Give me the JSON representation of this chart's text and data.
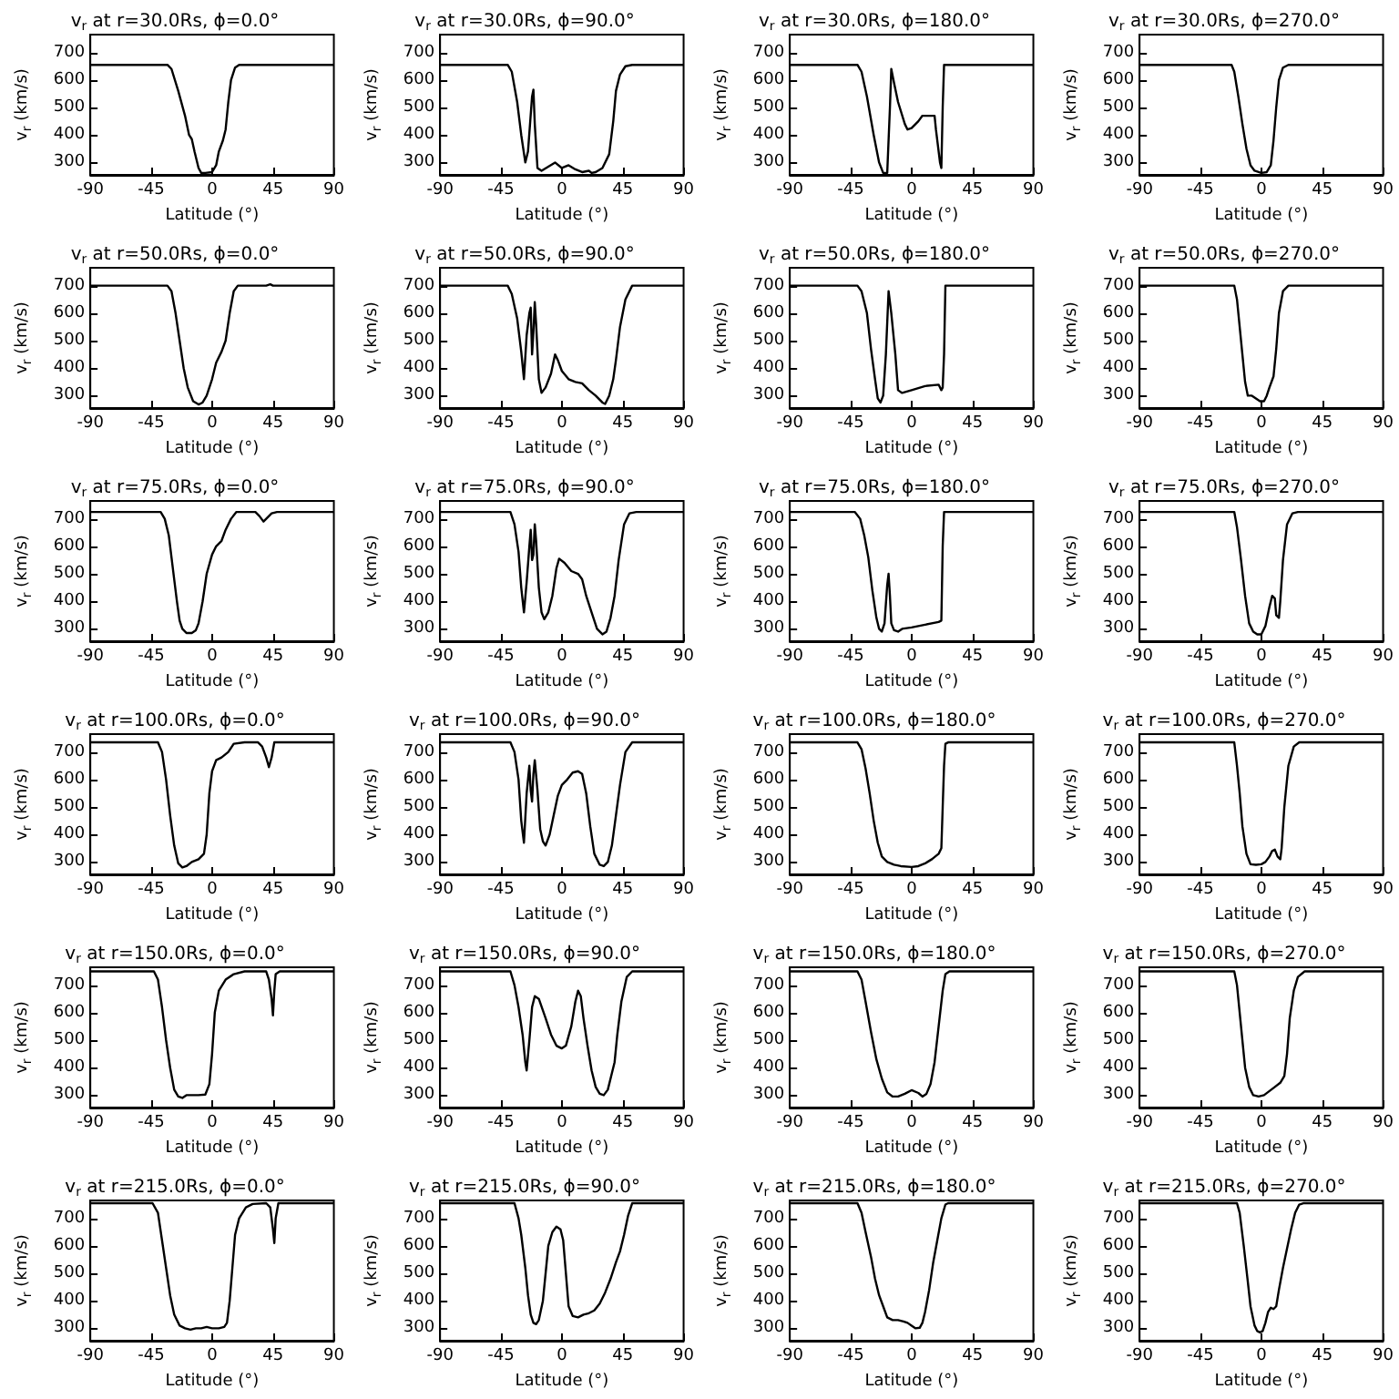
{
  "chart_data": [
    {
      "type": "line",
      "title": "v$_{r}$ at r=30.0Rs, ϕ=0.0°",
      "xlabel": "Latitude (°)",
      "ylabel": "v$_{r}$ (km/s)",
      "xlim": [
        -90,
        90
      ],
      "xticks": [
        -90,
        -45,
        0,
        45,
        90
      ],
      "ylim": [
        255,
        765
      ],
      "yticks": [
        300,
        400,
        500,
        600,
        700
      ],
      "color": "#000000",
      "x": [
        -90,
        -33,
        -30,
        -25,
        -20,
        -17,
        -15,
        -13,
        -10,
        -8,
        -5,
        0,
        3,
        5,
        8,
        10,
        12,
        14,
        17,
        20,
        90
      ],
      "values": [
        655,
        655,
        640,
        560,
        470,
        400,
        385,
        340,
        280,
        262,
        262,
        265,
        290,
        340,
        380,
        420,
        520,
        600,
        645,
        655,
        655
      ]
    },
    {
      "type": "line",
      "title": "v$_{r}$ at r=30.0Rs, ϕ=90.0°",
      "xlabel": "Latitude (°)",
      "ylabel": "v$_{r}$ (km/s)",
      "xlim": [
        -90,
        90
      ],
      "xticks": [
        -90,
        -45,
        0,
        45,
        90
      ],
      "ylim": [
        255,
        765
      ],
      "yticks": [
        300,
        400,
        500,
        600,
        700
      ],
      "color": "#000000",
      "x": [
        -90,
        -40,
        -37,
        -33,
        -30,
        -27,
        -25,
        -22,
        -21,
        -20,
        -18,
        -15,
        -10,
        -5,
        0,
        5,
        10,
        15,
        20,
        22,
        25,
        30,
        35,
        38,
        40,
        43,
        47,
        52,
        90
      ],
      "values": [
        655,
        655,
        630,
        520,
        400,
        300,
        340,
        540,
        565,
        440,
        280,
        270,
        285,
        300,
        280,
        290,
        275,
        265,
        270,
        262,
        265,
        280,
        330,
        450,
        560,
        620,
        650,
        655,
        655
      ]
    },
    {
      "type": "line",
      "title": "v$_{r}$ at r=30.0Rs, ϕ=180.0°",
      "xlabel": "Latitude (°)",
      "ylabel": "v$_{r}$ (km/s)",
      "xlim": [
        -90,
        90
      ],
      "xticks": [
        -90,
        -45,
        0,
        45,
        90
      ],
      "ylim": [
        255,
        765
      ],
      "yticks": [
        300,
        400,
        500,
        600,
        700
      ],
      "color": "#000000",
      "x": [
        -90,
        -40,
        -37,
        -33,
        -28,
        -24,
        -21,
        -18,
        -16,
        -15,
        -13,
        -10,
        -5,
        -3,
        0,
        5,
        8,
        14,
        17,
        18,
        21,
        22,
        23,
        24,
        90
      ],
      "values": [
        655,
        655,
        630,
        540,
        400,
        300,
        262,
        262,
        500,
        640,
        590,
        520,
        440,
        420,
        425,
        450,
        470,
        470,
        470,
        420,
        300,
        280,
        500,
        655,
        655
      ]
    },
    {
      "type": "line",
      "title": "v$_{r}$ at r=30.0Rs, ϕ=270.0°",
      "xlabel": "Latitude (°)",
      "ylabel": "v$_{r}$ (km/s)",
      "xlim": [
        -90,
        90
      ],
      "xticks": [
        -90,
        -45,
        0,
        45,
        90
      ],
      "ylim": [
        255,
        765
      ],
      "yticks": [
        300,
        400,
        500,
        600,
        700
      ],
      "color": "#000000",
      "x": [
        -90,
        -22,
        -20,
        -17,
        -14,
        -11,
        -8,
        -5,
        0,
        4,
        7,
        9,
        11,
        13,
        16,
        20,
        90
      ],
      "values": [
        655,
        655,
        630,
        540,
        440,
        350,
        290,
        270,
        262,
        265,
        290,
        380,
        500,
        600,
        645,
        655,
        655
      ]
    },
    {
      "type": "line",
      "title": "v$_{r}$ at r=50.0Rs, ϕ=0.0°",
      "xlabel": "Latitude (°)",
      "ylabel": "v$_{r}$ (km/s)",
      "xlim": [
        -90,
        90
      ],
      "xticks": [
        -90,
        -45,
        0,
        45,
        90
      ],
      "ylim": [
        255,
        765
      ],
      "yticks": [
        300,
        400,
        500,
        600,
        700
      ],
      "color": "#000000",
      "x": [
        -90,
        -33,
        -30,
        -27,
        -24,
        -21,
        -18,
        -14,
        -10,
        -7,
        -4,
        0,
        3,
        7,
        10,
        13,
        16,
        19,
        40,
        43,
        45,
        90
      ],
      "values": [
        700,
        700,
        680,
        600,
        500,
        400,
        330,
        280,
        268,
        275,
        300,
        360,
        420,
        460,
        500,
        600,
        680,
        700,
        700,
        705,
        700,
        700
      ]
    },
    {
      "type": "line",
      "title": "v$_{r}$ at r=50.0Rs, ϕ=90.0°",
      "xlabel": "Latitude (°)",
      "ylabel": "v$_{r}$ (km/s)",
      "xlim": [
        -90,
        90
      ],
      "xticks": [
        -90,
        -45,
        0,
        45,
        90
      ],
      "ylim": [
        255,
        765
      ],
      "yticks": [
        300,
        400,
        500,
        600,
        700
      ],
      "color": "#000000",
      "x": [
        -90,
        -40,
        -37,
        -33,
        -30,
        -28,
        -26,
        -24,
        -23,
        -22,
        -21,
        -20,
        -19,
        -17,
        -15,
        -12,
        -8,
        -5,
        -3,
        0,
        5,
        10,
        15,
        20,
        25,
        30,
        32,
        35,
        38,
        40,
        43,
        47,
        52,
        90
      ],
      "values": [
        700,
        700,
        670,
        580,
        460,
        360,
        520,
        600,
        620,
        450,
        530,
        640,
        560,
        360,
        310,
        330,
        380,
        450,
        430,
        390,
        360,
        350,
        345,
        320,
        300,
        275,
        270,
        300,
        360,
        430,
        550,
        650,
        700,
        700
      ]
    },
    {
      "type": "line",
      "title": "v$_{r}$ at r=50.0Rs, ϕ=180.0°",
      "xlabel": "Latitude (°)",
      "ylabel": "v$_{r}$ (km/s)",
      "xlim": [
        -90,
        90
      ],
      "xticks": [
        -90,
        -45,
        0,
        45,
        90
      ],
      "ylim": [
        255,
        765
      ],
      "yticks": [
        300,
        400,
        500,
        600,
        700
      ],
      "color": "#000000",
      "x": [
        -90,
        -40,
        -37,
        -33,
        -30,
        -27,
        -25,
        -23,
        -21,
        -19,
        -17,
        -15,
        -12,
        -10,
        -7,
        0,
        10,
        20,
        22,
        23,
        24,
        25,
        90
      ],
      "values": [
        700,
        700,
        680,
        600,
        470,
        360,
        290,
        275,
        300,
        450,
        680,
        600,
        450,
        320,
        310,
        320,
        335,
        340,
        320,
        330,
        450,
        700,
        700
      ]
    },
    {
      "type": "line",
      "title": "v$_{r}$ at r=50.0Rs, ϕ=270.0°",
      "xlabel": "Latitude (°)",
      "ylabel": "v$_{r}$ (km/s)",
      "xlim": [
        -90,
        90
      ],
      "xticks": [
        -90,
        -45,
        0,
        45,
        90
      ],
      "ylim": [
        255,
        765
      ],
      "yticks": [
        300,
        400,
        500,
        600,
        700
      ],
      "color": "#000000",
      "x": [
        -90,
        -20,
        -18,
        -16,
        -14,
        -12,
        -10,
        -7,
        -4,
        -1,
        2,
        4,
        6,
        9,
        11,
        13,
        16,
        20,
        90
      ],
      "values": [
        700,
        700,
        650,
        550,
        450,
        350,
        300,
        300,
        290,
        280,
        280,
        300,
        330,
        370,
        470,
        600,
        680,
        700,
        700
      ]
    },
    {
      "type": "line",
      "title": "v$_{r}$ at r=75.0Rs, ϕ=0.0°",
      "xlabel": "Latitude (°)",
      "ylabel": "v$_{r}$ (km/s)",
      "xlim": [
        -90,
        90
      ],
      "xticks": [
        -90,
        -45,
        0,
        45,
        90
      ],
      "ylim": [
        255,
        765
      ],
      "yticks": [
        300,
        400,
        500,
        600,
        700
      ],
      "color": "#000000",
      "x": [
        -90,
        -38,
        -35,
        -32,
        -30,
        -28,
        -26,
        -24,
        -22,
        -19,
        -15,
        -12,
        -10,
        -7,
        -4,
        0,
        3,
        7,
        10,
        14,
        18,
        32,
        35,
        38,
        41,
        44,
        48,
        90
      ],
      "values": [
        725,
        725,
        700,
        640,
        560,
        480,
        400,
        330,
        300,
        285,
        285,
        295,
        320,
        400,
        500,
        570,
        600,
        620,
        660,
        700,
        725,
        725,
        710,
        690,
        705,
        720,
        725,
        725
      ]
    },
    {
      "type": "line",
      "title": "v$_{r}$ at r=75.0Rs, ϕ=90.0°",
      "xlabel": "Latitude (°)",
      "ylabel": "v$_{r}$ (km/s)",
      "xlim": [
        -90,
        90
      ],
      "xticks": [
        -90,
        -45,
        0,
        45,
        90
      ],
      "ylim": [
        255,
        765
      ],
      "yticks": [
        300,
        400,
        500,
        600,
        700
      ],
      "color": "#000000",
      "x": [
        -90,
        -38,
        -35,
        -32,
        -30,
        -28,
        -26,
        -24,
        -23,
        -22,
        -21,
        -20,
        -19,
        -17,
        -15,
        -13,
        -10,
        -7,
        -4,
        -2,
        2,
        7,
        12,
        15,
        18,
        22,
        26,
        30,
        33,
        36,
        39,
        42,
        46,
        50,
        55,
        90
      ],
      "values": [
        725,
        725,
        680,
        580,
        450,
        360,
        470,
        600,
        660,
        550,
        570,
        680,
        620,
        450,
        360,
        335,
        360,
        420,
        520,
        555,
        540,
        510,
        500,
        480,
        420,
        360,
        300,
        280,
        290,
        340,
        420,
        550,
        680,
        720,
        725,
        725
      ]
    },
    {
      "type": "line",
      "title": "v$_{r}$ at r=75.0Rs, ϕ=180.0°",
      "xlabel": "Latitude (°)",
      "ylabel": "v$_{r}$ (km/s)",
      "xlim": [
        -90,
        90
      ],
      "xticks": [
        -90,
        -45,
        0,
        45,
        90
      ],
      "ylim": [
        255,
        765
      ],
      "yticks": [
        300,
        400,
        500,
        600,
        700
      ],
      "color": "#000000",
      "x": [
        -90,
        -42,
        -38,
        -35,
        -32,
        -29,
        -26,
        -24,
        -22,
        -20,
        -18,
        -17,
        -16,
        -15,
        -13,
        -10,
        -7,
        0,
        10,
        20,
        22,
        23,
        24,
        90
      ],
      "values": [
        725,
        725,
        700,
        640,
        560,
        440,
        340,
        300,
        290,
        320,
        460,
        500,
        420,
        320,
        295,
        290,
        300,
        305,
        315,
        325,
        330,
        600,
        725,
        725
      ]
    },
    {
      "type": "line",
      "title": "v$_{r}$ at r=75.0Rs, ϕ=270.0°",
      "xlabel": "Latitude (°)",
      "ylabel": "v$_{r}$ (km/s)",
      "xlim": [
        -90,
        90
      ],
      "xticks": [
        -90,
        -45,
        0,
        45,
        90
      ],
      "ylim": [
        255,
        765
      ],
      "yticks": [
        300,
        400,
        500,
        600,
        700
      ],
      "color": "#000000",
      "x": [
        -90,
        -20,
        -18,
        -15,
        -12,
        -9,
        -6,
        -3,
        0,
        3,
        6,
        8,
        10,
        11,
        13,
        14,
        16,
        19,
        23,
        27,
        90
      ],
      "values": [
        725,
        725,
        670,
        550,
        420,
        320,
        290,
        280,
        280,
        310,
        380,
        420,
        410,
        350,
        340,
        400,
        550,
        680,
        720,
        725,
        725
      ]
    },
    {
      "type": "line",
      "title": "v$_{r}$ at r=100.0Rs, ϕ=0.0°",
      "xlabel": "Latitude (°)",
      "ylabel": "v$_{r}$ (km/s)",
      "xlim": [
        -90,
        90
      ],
      "xticks": [
        -90,
        -45,
        0,
        45,
        90
      ],
      "ylim": [
        255,
        765
      ],
      "yticks": [
        300,
        400,
        500,
        600,
        700
      ],
      "color": "#000000",
      "x": [
        -90,
        -40,
        -37,
        -34,
        -31,
        -28,
        -25,
        -22,
        -19,
        -15,
        -10,
        -6,
        -4,
        -2,
        0,
        3,
        7,
        12,
        16,
        24,
        34,
        37,
        40,
        42,
        44,
        46,
        90
      ],
      "values": [
        735,
        735,
        700,
        600,
        470,
        360,
        295,
        280,
        285,
        300,
        310,
        330,
        400,
        550,
        630,
        670,
        680,
        700,
        730,
        735,
        735,
        720,
        680,
        645,
        680,
        735,
        735
      ]
    },
    {
      "type": "line",
      "title": "v$_{r}$ at r=100.0Rs, ϕ=90.0°",
      "xlabel": "Latitude (°)",
      "ylabel": "v$_{r}$ (km/s)",
      "xlim": [
        -90,
        90
      ],
      "xticks": [
        -90,
        -45,
        0,
        45,
        90
      ],
      "ylim": [
        255,
        765
      ],
      "yticks": [
        300,
        400,
        500,
        600,
        700
      ],
      "color": "#000000",
      "x": [
        -90,
        -38,
        -35,
        -32,
        -30,
        -28,
        -26,
        -24,
        -23,
        -22,
        -21,
        -20,
        -18,
        -16,
        -14,
        -12,
        -9,
        -6,
        -3,
        0,
        4,
        8,
        12,
        15,
        18,
        21,
        24,
        28,
        31,
        34,
        37,
        40,
        43,
        47,
        52,
        90
      ],
      "values": [
        735,
        735,
        700,
        600,
        450,
        370,
        550,
        650,
        560,
        520,
        620,
        670,
        560,
        420,
        375,
        360,
        400,
        470,
        540,
        580,
        600,
        625,
        630,
        620,
        550,
        430,
        330,
        290,
        285,
        300,
        360,
        470,
        580,
        700,
        735,
        735
      ]
    },
    {
      "type": "line",
      "title": "v$_{r}$ at r=100.0Rs, ϕ=180.0°",
      "xlabel": "Latitude (°)",
      "ylabel": "v$_{r}$ (km/s)",
      "xlim": [
        -90,
        90
      ],
      "xticks": [
        -90,
        -45,
        0,
        45,
        90
      ],
      "ylim": [
        255,
        765
      ],
      "yticks": [
        300,
        400,
        500,
        600,
        700
      ],
      "color": "#000000",
      "x": [
        -90,
        -40,
        -37,
        -34,
        -31,
        -28,
        -25,
        -22,
        -18,
        -13,
        -8,
        0,
        5,
        10,
        15,
        20,
        22,
        23,
        24,
        25,
        27,
        90
      ],
      "values": [
        735,
        735,
        710,
        640,
        550,
        450,
        370,
        320,
        300,
        290,
        285,
        282,
        285,
        295,
        310,
        330,
        350,
        500,
        650,
        730,
        735,
        735
      ]
    },
    {
      "type": "line",
      "title": "v$_{r}$ at r=100.0Rs, ϕ=270.0°",
      "xlabel": "Latitude (°)",
      "ylabel": "v$_{r}$ (km/s)",
      "xlim": [
        -90,
        90
      ],
      "xticks": [
        -90,
        -45,
        0,
        45,
        90
      ],
      "ylim": [
        255,
        765
      ],
      "yticks": [
        300,
        400,
        500,
        600,
        700
      ],
      "color": "#000000",
      "x": [
        -90,
        -20,
        -18,
        -16,
        -14,
        -11,
        -8,
        -4,
        0,
        3,
        6,
        8,
        10,
        12,
        14,
        15,
        17,
        20,
        24,
        28,
        90
      ],
      "values": [
        735,
        735,
        650,
        550,
        430,
        330,
        292,
        290,
        292,
        300,
        320,
        340,
        345,
        320,
        310,
        350,
        500,
        650,
        720,
        735,
        735
      ]
    },
    {
      "type": "line",
      "title": "v$_{r}$ at r=150.0Rs, ϕ=0.0°",
      "xlabel": "Latitude (°)",
      "ylabel": "v$_{r}$ (km/s)",
      "xlim": [
        -90,
        90
      ],
      "xticks": [
        -90,
        -45,
        0,
        45,
        90
      ],
      "ylim": [
        255,
        765
      ],
      "yticks": [
        300,
        400,
        500,
        600,
        700
      ],
      "color": "#000000",
      "x": [
        -90,
        -43,
        -40,
        -37,
        -34,
        -31,
        -28,
        -25,
        -22,
        -19,
        -15,
        -10,
        -5,
        -2,
        0,
        2,
        5,
        10,
        16,
        24,
        40,
        42,
        44,
        45,
        46,
        47,
        50,
        90
      ],
      "values": [
        750,
        750,
        720,
        620,
        500,
        400,
        320,
        295,
        290,
        300,
        300,
        300,
        302,
        340,
        450,
        600,
        680,
        720,
        740,
        750,
        750,
        720,
        650,
        590,
        680,
        740,
        750,
        750
      ]
    },
    {
      "type": "line",
      "title": "v$_{r}$ at r=150.0Rs, ϕ=90.0°",
      "xlabel": "Latitude (°)",
      "ylabel": "v$_{r}$ (km/s)",
      "xlim": [
        -90,
        90
      ],
      "xticks": [
        -90,
        -45,
        0,
        45,
        90
      ],
      "ylim": [
        255,
        765
      ],
      "yticks": [
        300,
        400,
        500,
        600,
        700
      ],
      "color": "#000000",
      "x": [
        -90,
        -38,
        -35,
        -32,
        -29,
        -27,
        -26,
        -24,
        -22,
        -20,
        -17,
        -12,
        -8,
        -4,
        0,
        3,
        7,
        10,
        12,
        14,
        16,
        19,
        22,
        25,
        28,
        31,
        34,
        37,
        39,
        41,
        44,
        48,
        52,
        90
      ],
      "values": [
        750,
        750,
        700,
        620,
        520,
        420,
        390,
        500,
        620,
        660,
        650,
        580,
        520,
        480,
        470,
        480,
        550,
        640,
        680,
        660,
        580,
        480,
        390,
        330,
        305,
        300,
        320,
        380,
        420,
        520,
        640,
        730,
        750,
        750
      ]
    },
    {
      "type": "line",
      "title": "v$_{r}$ at r=150.0Rs, ϕ=180.0°",
      "xlabel": "Latitude (°)",
      "ylabel": "v$_{r}$ (km/s)",
      "xlim": [
        -90,
        90
      ],
      "xticks": [
        -90,
        -45,
        0,
        45,
        90
      ],
      "ylim": [
        255,
        765
      ],
      "yticks": [
        300,
        400,
        500,
        600,
        700
      ],
      "color": "#000000",
      "x": [
        -90,
        -40,
        -37,
        -34,
        -30,
        -26,
        -22,
        -18,
        -14,
        -10,
        -5,
        0,
        5,
        8,
        11,
        14,
        17,
        20,
        23,
        25,
        28,
        90
      ],
      "values": [
        750,
        750,
        720,
        640,
        530,
        430,
        360,
        310,
        295,
        295,
        305,
        318,
        308,
        295,
        305,
        340,
        420,
        550,
        680,
        740,
        750,
        750
      ]
    },
    {
      "type": "line",
      "title": "v$_{r}$ at r=150.0Rs, ϕ=270.0°",
      "xlabel": "Latitude (°)",
      "ylabel": "v$_{r}$ (km/s)",
      "xlim": [
        -90,
        90
      ],
      "xticks": [
        -90,
        -45,
        0,
        45,
        90
      ],
      "ylim": [
        255,
        765
      ],
      "yticks": [
        300,
        400,
        500,
        600,
        700
      ],
      "color": "#000000",
      "x": [
        -90,
        -20,
        -18,
        -16,
        -14,
        -12,
        -9,
        -6,
        -2,
        2,
        6,
        10,
        14,
        17,
        19,
        21,
        24,
        27,
        32,
        90
      ],
      "values": [
        750,
        750,
        700,
        600,
        500,
        400,
        330,
        300,
        295,
        300,
        315,
        330,
        345,
        370,
        450,
        580,
        680,
        730,
        750,
        750
      ]
    },
    {
      "type": "line",
      "title": "v$_{r}$ at r=215.0Rs, ϕ=0.0°",
      "xlabel": "Latitude (°)",
      "ylabel": "v$_{r}$ (km/s)",
      "xlim": [
        -90,
        90
      ],
      "xticks": [
        -90,
        -45,
        0,
        45,
        90
      ],
      "ylim": [
        255,
        765
      ],
      "yticks": [
        300,
        400,
        500,
        600,
        700
      ],
      "color": "#000000",
      "x": [
        -90,
        -44,
        -40,
        -37,
        -34,
        -31,
        -28,
        -24,
        -20,
        -16,
        -12,
        -8,
        -4,
        0,
        5,
        9,
        11,
        13,
        15,
        17,
        20,
        25,
        30,
        40,
        43,
        45,
        46,
        47,
        49,
        90
      ],
      "values": [
        755,
        755,
        720,
        620,
        520,
        420,
        350,
        310,
        300,
        295,
        300,
        300,
        305,
        300,
        300,
        305,
        320,
        400,
        520,
        640,
        700,
        740,
        752,
        755,
        740,
        660,
        610,
        700,
        755,
        755
      ]
    },
    {
      "type": "line",
      "title": "v$_{r}$ at r=215.0Rs, ϕ=90.0°",
      "xlabel": "Latitude (°)",
      "ylabel": "v$_{r}$ (km/s)",
      "xlim": [
        -90,
        90
      ],
      "xticks": [
        -90,
        -45,
        0,
        45,
        90
      ],
      "ylim": [
        255,
        765
      ],
      "yticks": [
        300,
        400,
        500,
        600,
        700
      ],
      "color": "#000000",
      "x": [
        -90,
        -35,
        -32,
        -30,
        -27,
        -25,
        -23,
        -21,
        -19,
        -17,
        -14,
        -12,
        -10,
        -7,
        -4,
        -1,
        1,
        3,
        5,
        8,
        12,
        16,
        20,
        24,
        28,
        32,
        36,
        40,
        43,
        46,
        49,
        52,
        90
      ],
      "values": [
        755,
        755,
        700,
        640,
        520,
        420,
        350,
        320,
        315,
        330,
        400,
        500,
        600,
        650,
        670,
        660,
        620,
        500,
        380,
        345,
        340,
        350,
        355,
        365,
        390,
        430,
        480,
        540,
        580,
        640,
        710,
        755,
        755
      ]
    },
    {
      "type": "line",
      "title": "v$_{r}$ at r=215.0Rs, ϕ=180.0°",
      "xlabel": "Latitude (°)",
      "ylabel": "v$_{r}$ (km/s)",
      "xlim": [
        -90,
        90
      ],
      "xticks": [
        -90,
        -45,
        0,
        45,
        90
      ],
      "ylim": [
        255,
        765
      ],
      "yticks": [
        300,
        400,
        500,
        600,
        700
      ],
      "color": "#000000",
      "x": [
        -90,
        -40,
        -37,
        -34,
        -30,
        -27,
        -24,
        -21,
        -18,
        -14,
        -10,
        -6,
        -3,
        0,
        3,
        6,
        8,
        10,
        13,
        16,
        19,
        22,
        25,
        27,
        90
      ],
      "values": [
        755,
        755,
        720,
        650,
        560,
        480,
        420,
        380,
        340,
        330,
        330,
        325,
        320,
        310,
        300,
        302,
        320,
        360,
        440,
        540,
        620,
        700,
        750,
        755,
        755
      ]
    },
    {
      "type": "line",
      "title": "v$_{r}$ at r=215.0Rs, ϕ=270.0°",
      "xlabel": "Latitude (°)",
      "ylabel": "v$_{r}$ (km/s)",
      "xlim": [
        -90,
        90
      ],
      "xticks": [
        -90,
        -45,
        0,
        45,
        90
      ],
      "ylim": [
        255,
        765
      ],
      "yticks": [
        300,
        400,
        500,
        600,
        700
      ],
      "color": "#000000",
      "x": [
        -90,
        -18,
        -16,
        -13,
        -10,
        -8,
        -5,
        -3,
        -1,
        1,
        3,
        5,
        7,
        9,
        11,
        13,
        16,
        19,
        22,
        25,
        28,
        31,
        90
      ],
      "values": [
        755,
        755,
        720,
        600,
        470,
        380,
        310,
        290,
        285,
        290,
        320,
        360,
        375,
        370,
        380,
        440,
        520,
        590,
        660,
        720,
        750,
        755,
        755
      ]
    }
  ]
}
